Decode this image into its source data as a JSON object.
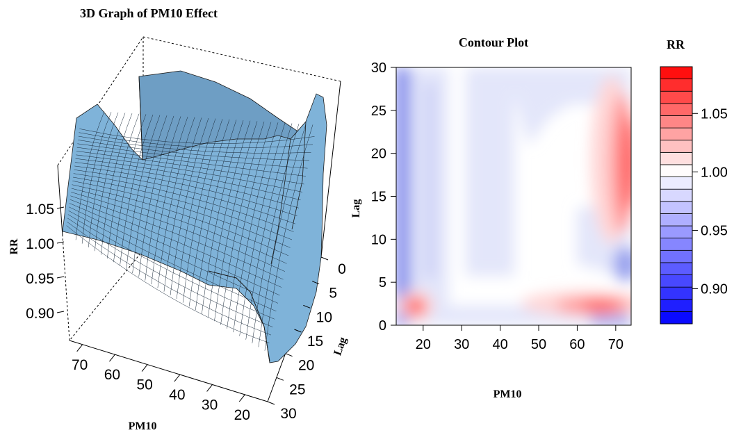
{
  "chart_data": [
    {
      "type": "surface",
      "title": "3D Graph of PM10 Effect",
      "xlabel": "PM10",
      "ylabel": "Lag",
      "zlabel": "RR",
      "x_ticks": [
        "70",
        "60",
        "50",
        "40",
        "30",
        "20"
      ],
      "y_ticks": [
        "0",
        "5",
        "10",
        "15",
        "20",
        "25",
        "30"
      ],
      "z_ticks": [
        "0.90",
        "0.95",
        "1.00",
        "1.05"
      ],
      "x_range": [
        13,
        74
      ],
      "y_range": [
        0,
        30
      ],
      "z_range": [
        0.87,
        1.09
      ],
      "surface_color": "#7fb3d9"
    },
    {
      "type": "heatmap",
      "title": "Contour Plot",
      "xlabel": "PM10",
      "ylabel": "Lag",
      "x_ticks": [
        "20",
        "30",
        "40",
        "50",
        "60",
        "70"
      ],
      "y_ticks": [
        "0",
        "5",
        "10",
        "15",
        "20",
        "25",
        "30"
      ],
      "xlim": [
        13,
        74
      ],
      "ylim": [
        0,
        30
      ],
      "features": [
        {
          "kind": "high",
          "x": 18,
          "lag": 2,
          "rr": 1.07
        },
        {
          "kind": "high",
          "x": 65,
          "lag": 2,
          "rr": 1.05
        },
        {
          "kind": "high",
          "x": 73,
          "lag": 18,
          "rr": 1.08
        },
        {
          "kind": "low",
          "x": 13,
          "lag": 15,
          "rr": 0.92
        },
        {
          "kind": "low",
          "x": 73,
          "lag": 6,
          "rr": 0.95
        }
      ]
    },
    {
      "type": "colorbar",
      "title": "RR",
      "ticks": [
        "1.05",
        "1.00",
        "0.95",
        "0.90"
      ],
      "tick_values": [
        1.05,
        1.0,
        0.95,
        0.9
      ],
      "range": [
        0.87,
        1.09
      ],
      "low_color": "#0000ff",
      "mid_color": "#ffffff",
      "high_color": "#ff0000"
    }
  ]
}
